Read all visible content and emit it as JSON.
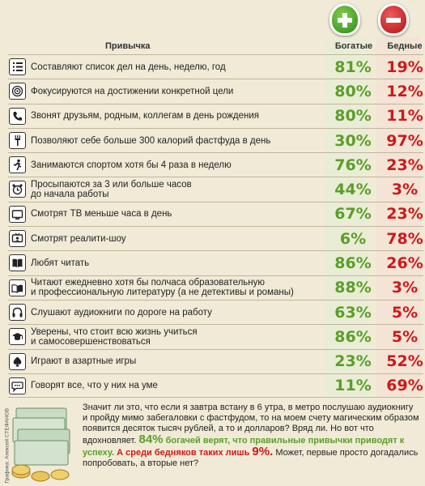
{
  "header": {
    "habit": "Привычка",
    "rich": "Богатые",
    "poor": "Бедные"
  },
  "colors": {
    "rich": "#5a9e2a",
    "poor": "#cc1a1a",
    "background": "#f1ead6"
  },
  "chart_data": {
    "type": "table",
    "columns": [
      "Привычка",
      "Богатые",
      "Бедные"
    ],
    "rows": [
      {
        "icon": "list-icon",
        "habit": "Составляют список дел на день, неделю, год",
        "rich": "81%",
        "poor": "19%"
      },
      {
        "icon": "target-icon",
        "habit": "Фокусируются на достижении конкретной цели",
        "rich": "80%",
        "poor": "12%"
      },
      {
        "icon": "phone-icon",
        "habit": "Звонят друзьям, родным, коллегам в день рождения",
        "rich": "80%",
        "poor": "11%"
      },
      {
        "icon": "fork-icon",
        "habit": "Позволяют себе больше 300 калорий фастфуда в день",
        "rich": "30%",
        "poor": "97%"
      },
      {
        "icon": "runner-icon",
        "habit": "Занимаются спортом хотя бы 4 раза в неделю",
        "rich": "76%",
        "poor": "23%"
      },
      {
        "icon": "alarm-clock-icon",
        "habit": "Просыпаются за 3 или больше часов\nдо начала работы",
        "rich": "44%",
        "poor": "3%"
      },
      {
        "icon": "tv-icon",
        "habit": "Смотрят ТВ меньше часа в день",
        "rich": "67%",
        "poor": "23%"
      },
      {
        "icon": "reality-tv-icon",
        "habit": "Смотрят реалити-шоу",
        "rich": "6%",
        "poor": "78%"
      },
      {
        "icon": "book-icon",
        "habit": "Любят читать",
        "rich": "86%",
        "poor": "26%"
      },
      {
        "icon": "open-book-icon",
        "habit": "Читают ежедневно хотя бы полчаса образовательную\nи профессиональную литературу (а не детективы и романы)",
        "rich": "88%",
        "poor": "3%"
      },
      {
        "icon": "headphones-icon",
        "habit": "Слушают аудиокниги по дороге на работу",
        "rich": "63%",
        "poor": "5%"
      },
      {
        "icon": "graduation-cap-icon",
        "habit": "Уверены, что стоит всю жизнь учиться\nи самосовершенствоваться",
        "rich": "86%",
        "poor": "5%"
      },
      {
        "icon": "spade-icon",
        "habit": "Играют в азартные игры",
        "rich": "23%",
        "poor": "52%"
      },
      {
        "icon": "speech-bubble-icon",
        "habit": "Говорят все, что у них на уме",
        "rich": "11%",
        "poor": "69%"
      }
    ]
  },
  "caption": {
    "part1": "Значит ли это, что если я завтра встану в 6 утра, в метро послушаю аудиокнигу и пройду мимо забегаловки с фастфудом, то на моем счету магическим образом появится десяток тысяч рублей, а то и долларов? Вряд ли. Но вот что вдохновляет.",
    "rich_pct": "84%",
    "rich_text": "богачей верят, что правильные привычки приводят к успеху.",
    "poor_text": "А среди бедняков таких лишь",
    "poor_pct": "9%.",
    "part2": "Может, первые просто догадались попробовать, а вторые нет?"
  },
  "credit": "Графика: Алексей СТЕФАНОВ"
}
